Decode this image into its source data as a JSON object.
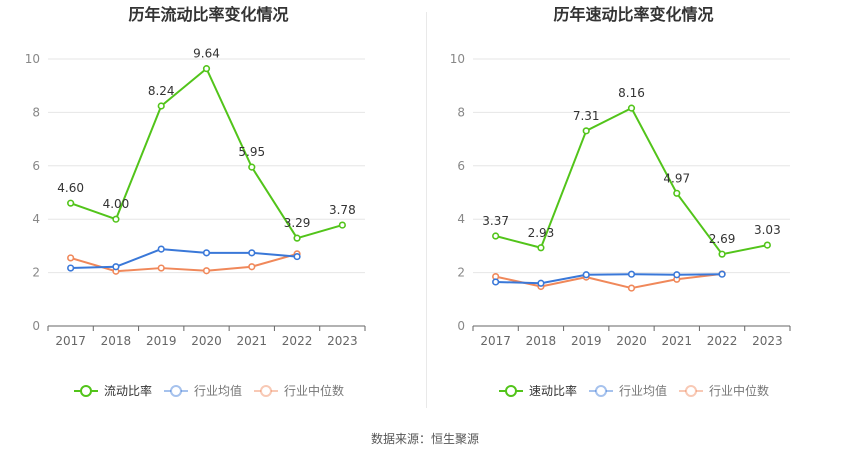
{
  "source_text": "数据来源：恒生聚源",
  "chart_data": [
    {
      "type": "line",
      "title": "历年流动比率变化情况",
      "categories": [
        "2017",
        "2018",
        "2019",
        "2020",
        "2021",
        "2022",
        "2023"
      ],
      "ylim": [
        0,
        10
      ],
      "yticks": [
        0,
        2,
        4,
        6,
        8,
        10
      ],
      "grid": true,
      "legend_position": "bottom",
      "series": [
        {
          "name": "流动比率",
          "color": "#52c41a",
          "values": [
            4.6,
            4.0,
            8.24,
            9.64,
            5.95,
            3.29,
            3.78
          ],
          "labels": [
            "4.60",
            "4.00",
            "8.24",
            "9.64",
            "5.95",
            "3.29",
            "3.78"
          ]
        },
        {
          "name": "行业均值",
          "color": "#3a78d8",
          "values": [
            2.17,
            2.22,
            2.88,
            2.74,
            2.74,
            2.6,
            null
          ]
        },
        {
          "name": "行业中位数",
          "color": "#f0885a",
          "values": [
            2.55,
            2.05,
            2.17,
            2.07,
            2.22,
            2.7,
            null
          ]
        }
      ]
    },
    {
      "type": "line",
      "title": "历年速动比率变化情况",
      "categories": [
        "2017",
        "2018",
        "2019",
        "2020",
        "2021",
        "2022",
        "2023"
      ],
      "ylim": [
        0,
        10
      ],
      "yticks": [
        0,
        2,
        4,
        6,
        8,
        10
      ],
      "grid": true,
      "legend_position": "bottom",
      "series": [
        {
          "name": "速动比率",
          "color": "#52c41a",
          "values": [
            3.37,
            2.93,
            7.31,
            8.16,
            4.97,
            2.69,
            3.03
          ],
          "labels": [
            "3.37",
            "2.93",
            "7.31",
            "8.16",
            "4.97",
            "2.69",
            "3.03"
          ]
        },
        {
          "name": "行业均值",
          "color": "#3a78d8",
          "values": [
            1.65,
            1.6,
            1.92,
            1.94,
            1.92,
            1.94,
            null
          ]
        },
        {
          "name": "行业中位数",
          "color": "#f0885a",
          "values": [
            1.85,
            1.48,
            1.83,
            1.42,
            1.75,
            1.95,
            null
          ]
        }
      ]
    }
  ]
}
